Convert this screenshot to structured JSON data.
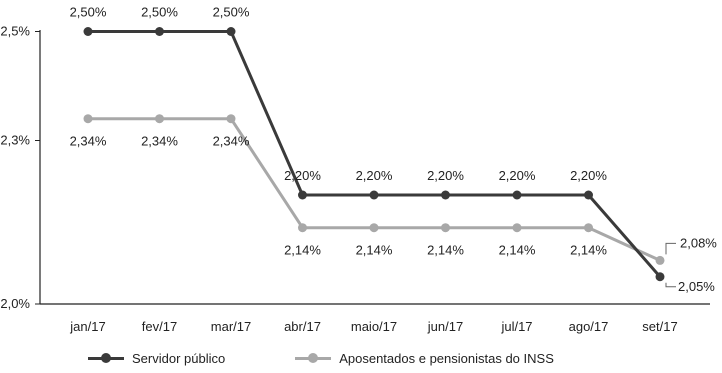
{
  "chart_data": {
    "type": "line",
    "categories": [
      "jan/17",
      "fev/17",
      "mar/17",
      "abr/17",
      "maio/17",
      "jun/17",
      "jul/17",
      "ago/17",
      "set/17"
    ],
    "y_ticks": [
      "2,0%",
      "2,3%",
      "2,5%"
    ],
    "series": [
      {
        "name": "Servidor público",
        "color": "#3a3a3a",
        "values": [
          2.5,
          2.5,
          2.5,
          2.2,
          2.2,
          2.2,
          2.2,
          2.2,
          2.05
        ],
        "labels": [
          "2,50%",
          "2,50%",
          "2,50%",
          "2,20%",
          "2,20%",
          "2,20%",
          "2,20%",
          "2,20%",
          "2,05%"
        ]
      },
      {
        "name": "Aposentados e pensionistas do INSS",
        "color": "#a8a8a8",
        "values": [
          2.34,
          2.34,
          2.34,
          2.14,
          2.14,
          2.14,
          2.14,
          2.14,
          2.08
        ],
        "labels": [
          "2,34%",
          "2,34%",
          "2,34%",
          "2,14%",
          "2,14%",
          "2,14%",
          "2,14%",
          "2,14%",
          "2,08%"
        ]
      }
    ],
    "title": "",
    "xlabel": "",
    "ylabel": "",
    "grid": false,
    "legend_position": "bottom"
  }
}
